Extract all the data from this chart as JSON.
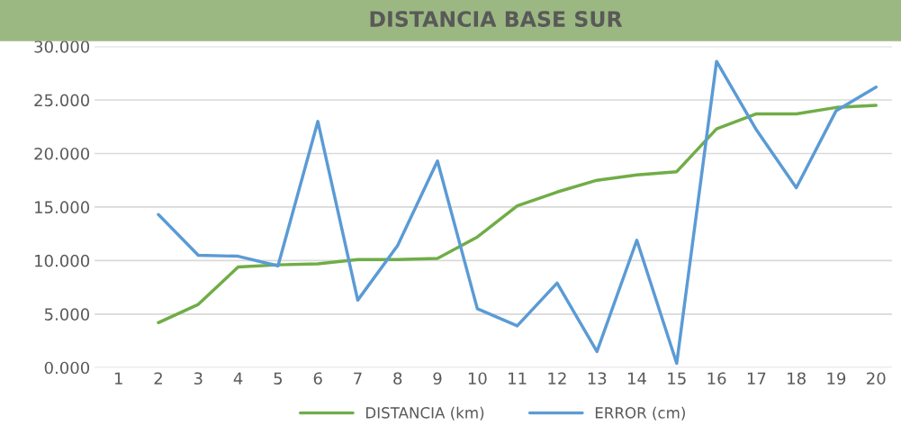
{
  "chart_data": {
    "type": "line",
    "title": "DISTANCIA BASE SUR",
    "categories": [
      "1",
      "2",
      "3",
      "4",
      "5",
      "6",
      "7",
      "8",
      "9",
      "10",
      "11",
      "12",
      "13",
      "14",
      "15",
      "16",
      "17",
      "18",
      "19",
      "20"
    ],
    "series": [
      {
        "name": "DISTANCIA (km)",
        "color": "#70ad47",
        "values": [
          null,
          4.2,
          5.9,
          9.4,
          9.6,
          9.7,
          10.1,
          10.1,
          10.2,
          12.2,
          15.1,
          16.4,
          17.5,
          18.0,
          18.3,
          22.3,
          23.7,
          23.7,
          24.3,
          24.5
        ]
      },
      {
        "name": "ERROR (cm)",
        "color": "#5b9bd5",
        "values": [
          null,
          14.3,
          10.5,
          10.4,
          9.5,
          23.0,
          6.3,
          11.4,
          19.3,
          5.5,
          3.9,
          7.9,
          1.5,
          11.9,
          0.4,
          28.6,
          22.2,
          16.8,
          24.0,
          26.2
        ]
      }
    ],
    "ylim": [
      0,
      30
    ],
    "yticks": [
      {
        "value": 0,
        "label": "0.000"
      },
      {
        "value": 5,
        "label": "5.000"
      },
      {
        "value": 10,
        "label": "10.000"
      },
      {
        "value": 15,
        "label": "15.000"
      },
      {
        "value": 20,
        "label": "20.000"
      },
      {
        "value": 25,
        "label": "25.000"
      },
      {
        "value": 30,
        "label": "30.000"
      }
    ],
    "grid": "y",
    "legend": "bottom",
    "marker": "none",
    "line_style": "solid"
  }
}
